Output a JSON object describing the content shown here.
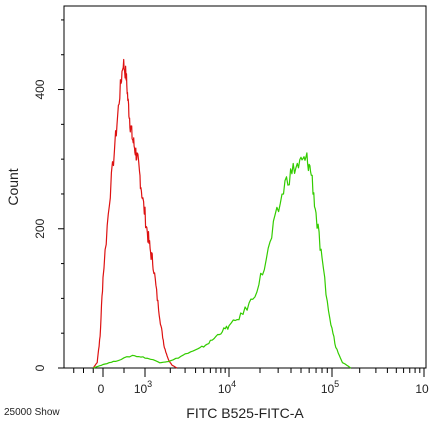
{
  "chart_data": {
    "type": "line",
    "xlabel": "FITC B525-FITC-A",
    "ylabel": "Count",
    "x_scale": "biexponential",
    "xlim": [
      -2000,
      1000000
    ],
    "ylim": [
      0,
      520
    ],
    "y_ticks": [
      0,
      200,
      400
    ],
    "x_ticks": [
      {
        "value": 0,
        "label": "0"
      },
      {
        "value": 1000,
        "label": "10",
        "sup": "3"
      },
      {
        "value": 10000,
        "label": "10",
        "sup": "4"
      },
      {
        "value": 100000,
        "label": "10",
        "sup": "5"
      },
      {
        "value": 1000000,
        "label": "10",
        "sup": ""
      }
    ],
    "grid": false,
    "legend": "none",
    "footer_note": "25000 Show",
    "series": [
      {
        "color": "#dd1111",
        "x": [
          -500,
          -300,
          -150,
          0,
          150,
          300,
          400,
          480,
          550,
          600,
          650,
          700,
          760,
          820,
          880,
          950,
          1050,
          1150,
          1250,
          1400,
          1550,
          1700,
          1900,
          2100,
          2400
        ],
        "y": [
          0,
          8,
          45,
          130,
          240,
          330,
          395,
          440,
          420,
          380,
          350,
          330,
          315,
          300,
          275,
          240,
          200,
          170,
          150,
          100,
          60,
          30,
          12,
          4,
          0
        ]
      },
      {
        "color": "#33cc00",
        "x": [
          -500,
          0,
          300,
          700,
          1000,
          1500,
          2000,
          3000,
          4500,
          6000,
          8000,
          10000,
          13000,
          17000,
          22000,
          28000,
          35000,
          42000,
          50000,
          57000,
          63000,
          70000,
          80000,
          95000,
          110000,
          130000,
          160000
        ],
        "y": [
          0,
          5,
          10,
          18,
          15,
          8,
          10,
          20,
          28,
          38,
          52,
          60,
          75,
          100,
          145,
          210,
          265,
          285,
          295,
          300,
          280,
          220,
          150,
          70,
          30,
          8,
          0
        ]
      }
    ]
  }
}
